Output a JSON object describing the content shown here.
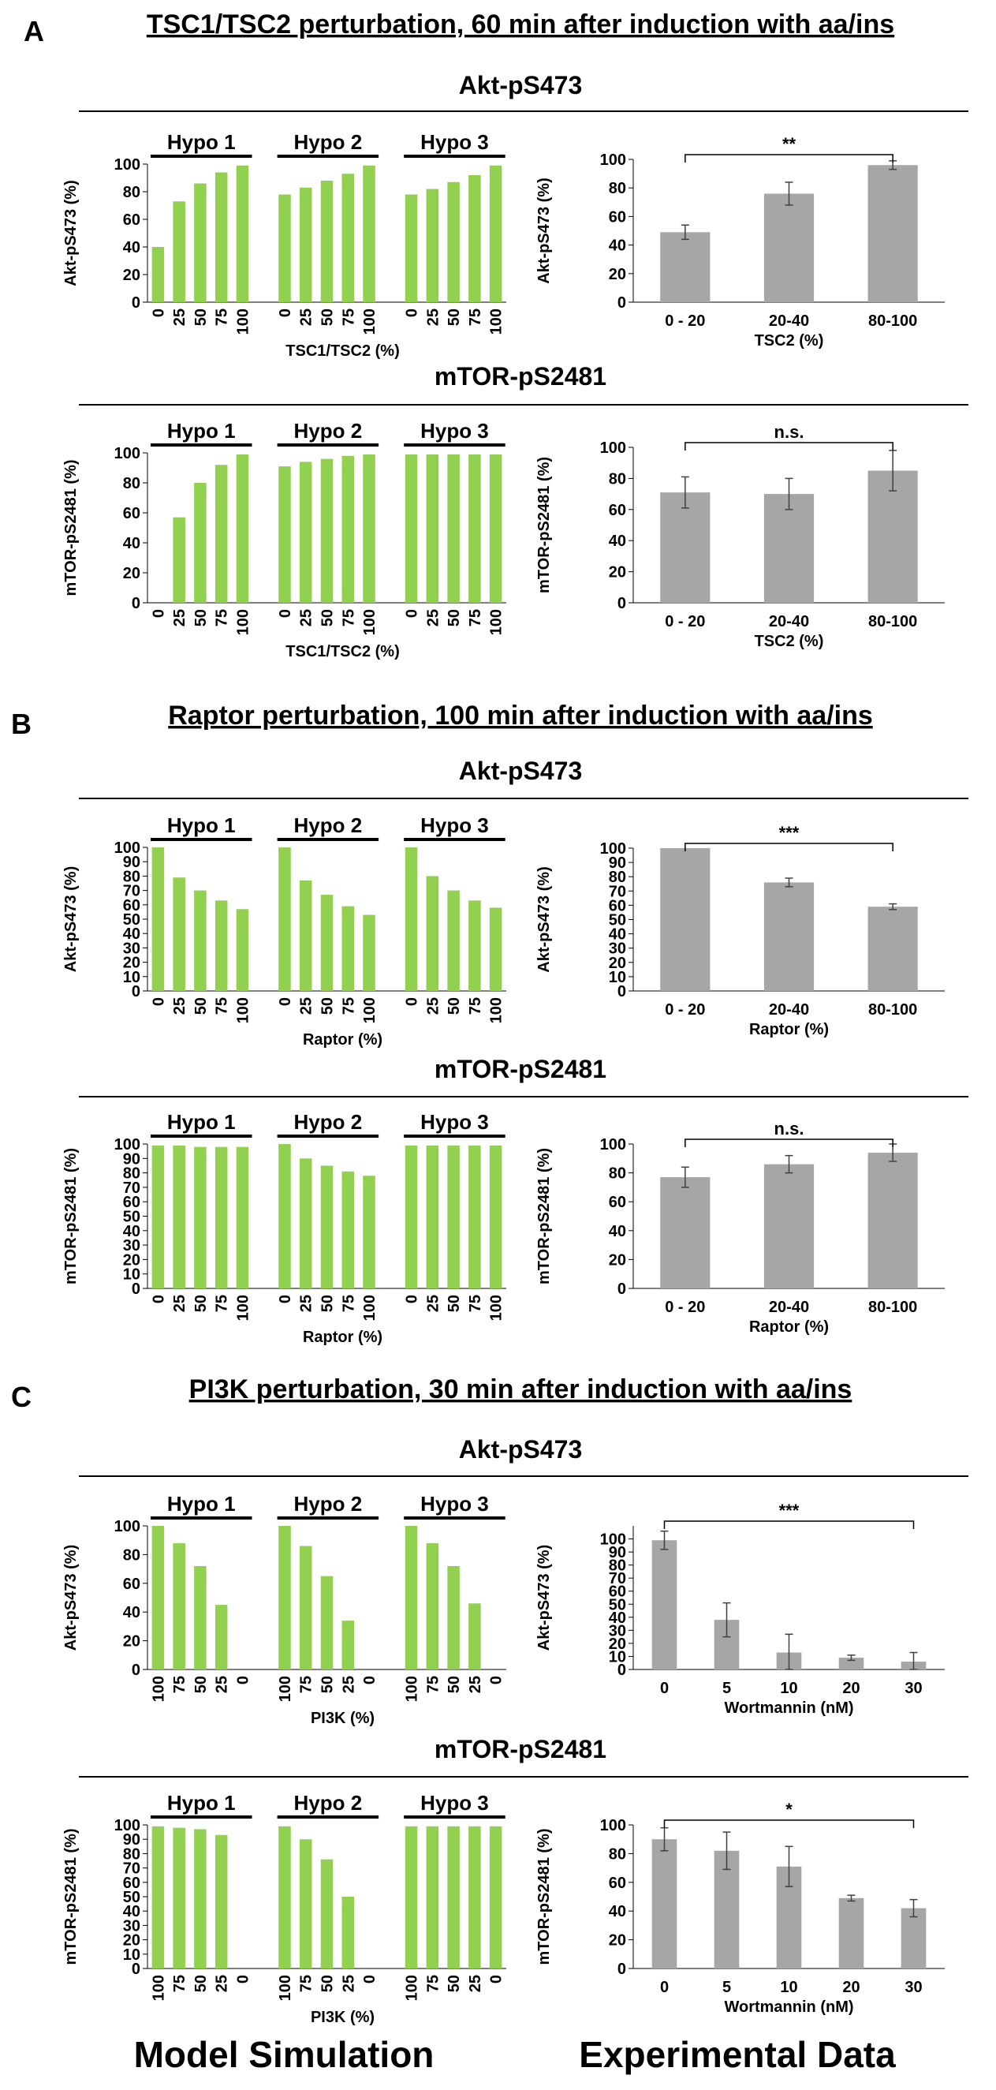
{
  "colors": {
    "simulation": "#92D050",
    "experiment": "#A6A6A6",
    "error_bar": "#404040"
  },
  "footer": {
    "left": "Model Simulation",
    "right": "Experimental Data"
  },
  "panels": [
    {
      "letter": "A",
      "title": "TSC1/TSC2 perturbation, 60 min after induction with aa/ins",
      "sections": [
        {
          "title": "Akt-pS473",
          "sim": {
            "type": "bar",
            "ylabel": "Akt-pS473 (%)",
            "xlabel": "TSC1/TSC2 (%)",
            "ylim": [
              0,
              100
            ],
            "yticks": [
              0,
              20,
              40,
              60,
              80,
              100
            ],
            "categories": [
              "0",
              "25",
              "50",
              "75",
              "100"
            ],
            "groups": [
              {
                "name": "Hypo 1",
                "values": [
                  40,
                  73,
                  86,
                  94,
                  99
                ]
              },
              {
                "name": "Hypo 2",
                "values": [
                  78,
                  83,
                  88,
                  93,
                  99
                ]
              },
              {
                "name": "Hypo 3",
                "values": [
                  78,
                  82,
                  87,
                  92,
                  99
                ]
              }
            ]
          },
          "exp": {
            "type": "bar",
            "ylabel": "Akt-pS473 (%)",
            "xlabel": "TSC2 (%)",
            "ylim": [
              0,
              100
            ],
            "yticks": [
              0,
              20,
              40,
              60,
              80,
              100
            ],
            "categories": [
              "0 - 20",
              "20-40",
              "80-100"
            ],
            "values": [
              49,
              76,
              96
            ],
            "errors": [
              5,
              8,
              3
            ],
            "significance": {
              "label": "**",
              "from": 0,
              "to": 2
            }
          }
        },
        {
          "title": "mTOR-pS2481",
          "sim": {
            "type": "bar",
            "ylabel": "mTOR-pS2481 (%)",
            "xlabel": "TSC1/TSC2 (%)",
            "ylim": [
              0,
              100
            ],
            "yticks": [
              0,
              20,
              40,
              60,
              80,
              100
            ],
            "categories": [
              "0",
              "25",
              "50",
              "75",
              "100"
            ],
            "groups": [
              {
                "name": "Hypo 1",
                "values": [
                  0,
                  57,
                  80,
                  92,
                  99
                ]
              },
              {
                "name": "Hypo 2",
                "values": [
                  91,
                  94,
                  96,
                  98,
                  99
                ]
              },
              {
                "name": "Hypo 3",
                "values": [
                  99,
                  99,
                  99,
                  99,
                  99
                ]
              }
            ]
          },
          "exp": {
            "type": "bar",
            "ylabel": "mTOR-pS2481 (%)",
            "xlabel": "TSC2 (%)",
            "ylim": [
              0,
              100
            ],
            "yticks": [
              0,
              20,
              40,
              60,
              80,
              100
            ],
            "categories": [
              "0 - 20",
              "20-40",
              "80-100"
            ],
            "values": [
              71,
              70,
              85
            ],
            "errors": [
              10,
              10,
              13
            ],
            "significance": {
              "label": "n.s.",
              "from": 0,
              "to": 2
            }
          }
        }
      ]
    },
    {
      "letter": "B",
      "title": "Raptor perturbation, 100 min after induction with aa/ins",
      "sections": [
        {
          "title": "Akt-pS473",
          "sim": {
            "type": "bar",
            "ylabel": "Akt-pS473 (%)",
            "xlabel": "Raptor (%)",
            "ylim": [
              0,
              100
            ],
            "yticks": [
              0,
              10,
              20,
              30,
              40,
              50,
              60,
              70,
              80,
              90,
              100
            ],
            "categories": [
              "0",
              "25",
              "50",
              "75",
              "100"
            ],
            "groups": [
              {
                "name": "Hypo 1",
                "values": [
                  100,
                  79,
                  70,
                  63,
                  57
                ]
              },
              {
                "name": "Hypo 2",
                "values": [
                  100,
                  77,
                  67,
                  59,
                  53
                ]
              },
              {
                "name": "Hypo 3",
                "values": [
                  100,
                  80,
                  70,
                  63,
                  58
                ]
              }
            ]
          },
          "exp": {
            "type": "bar",
            "ylabel": "Akt-pS473 (%)",
            "xlabel": "Raptor (%)",
            "ylim": [
              0,
              100
            ],
            "yticks": [
              0,
              10,
              20,
              30,
              40,
              50,
              60,
              70,
              80,
              90,
              100
            ],
            "categories": [
              "0 - 20",
              "20-40",
              "80-100"
            ],
            "values": [
              100,
              76,
              59
            ],
            "errors": [
              0,
              3,
              2
            ],
            "significance": {
              "label": "***",
              "from": 0,
              "to": 2
            }
          }
        },
        {
          "title": "mTOR-pS2481",
          "sim": {
            "type": "bar",
            "ylabel": "mTOR-pS2481 (%)",
            "xlabel": "Raptor (%)",
            "ylim": [
              0,
              100
            ],
            "yticks": [
              0,
              10,
              20,
              30,
              40,
              50,
              60,
              70,
              80,
              90,
              100
            ],
            "categories": [
              "0",
              "25",
              "50",
              "75",
              "100"
            ],
            "groups": [
              {
                "name": "Hypo 1",
                "values": [
                  99,
                  99,
                  98,
                  98,
                  98
                ]
              },
              {
                "name": "Hypo 2",
                "values": [
                  100,
                  90,
                  85,
                  81,
                  78
                ]
              },
              {
                "name": "Hypo 3",
                "values": [
                  99,
                  99,
                  99,
                  99,
                  99
                ]
              }
            ]
          },
          "exp": {
            "type": "bar",
            "ylabel": "mTOR-pS2481 (%)",
            "xlabel": "Raptor (%)",
            "ylim": [
              0,
              100
            ],
            "yticks": [
              0,
              20,
              40,
              60,
              80,
              100
            ],
            "categories": [
              "0 - 20",
              "20-40",
              "80-100"
            ],
            "values": [
              77,
              86,
              94
            ],
            "errors": [
              7,
              6,
              6
            ],
            "significance": {
              "label": "n.s.",
              "from": 0,
              "to": 2
            }
          }
        }
      ]
    },
    {
      "letter": "C",
      "title": "PI3K perturbation, 30 min after induction with aa/ins",
      "sections": [
        {
          "title": "Akt-pS473",
          "sim": {
            "type": "bar",
            "ylabel": "Akt-pS473 (%)",
            "xlabel": "PI3K (%)",
            "ylim": [
              0,
              100
            ],
            "yticks": [
              0,
              20,
              40,
              60,
              80,
              100
            ],
            "categories": [
              "100",
              "75",
              "50",
              "25",
              "0"
            ],
            "groups": [
              {
                "name": "Hypo 1",
                "values": [
                  100,
                  88,
                  72,
                  45,
                  0
                ]
              },
              {
                "name": "Hypo 2",
                "values": [
                  100,
                  86,
                  65,
                  34,
                  0
                ]
              },
              {
                "name": "Hypo 3",
                "values": [
                  100,
                  88,
                  72,
                  46,
                  0
                ]
              }
            ]
          },
          "exp": {
            "type": "bar",
            "ylabel": "Akt-pS473 (%)",
            "xlabel": "Wortmannin (nM)",
            "ylim": [
              0,
              110
            ],
            "yticks": [
              0,
              10,
              20,
              30,
              40,
              50,
              60,
              70,
              80,
              90,
              100
            ],
            "categories": [
              "0",
              "5",
              "10",
              "20",
              "30"
            ],
            "values": [
              99,
              38,
              13,
              9,
              6
            ],
            "errors": [
              7,
              13,
              14,
              2,
              7
            ],
            "significance": {
              "label": "***",
              "from": 0,
              "to": 4
            }
          }
        },
        {
          "title": "mTOR-pS2481",
          "sim": {
            "type": "bar",
            "ylabel": "mTOR-pS2481 (%)",
            "xlabel": "PI3K (%)",
            "ylim": [
              0,
              100
            ],
            "yticks": [
              0,
              10,
              20,
              30,
              40,
              50,
              60,
              70,
              80,
              90,
              100
            ],
            "categories": [
              "100",
              "75",
              "50",
              "25",
              "0"
            ],
            "groups": [
              {
                "name": "Hypo 1",
                "values": [
                  99,
                  98,
                  97,
                  93,
                  0
                ]
              },
              {
                "name": "Hypo 2",
                "values": [
                  99,
                  90,
                  76,
                  50,
                  0
                ]
              },
              {
                "name": "Hypo 3",
                "values": [
                  99,
                  99,
                  99,
                  99,
                  99
                ]
              }
            ]
          },
          "exp": {
            "type": "bar",
            "ylabel": "mTOR-pS2481 (%)",
            "xlabel": "Wortmannin (nM)",
            "ylim": [
              0,
              100
            ],
            "yticks": [
              0,
              20,
              40,
              60,
              80,
              100
            ],
            "categories": [
              "0",
              "5",
              "10",
              "20",
              "30"
            ],
            "values": [
              90,
              82,
              71,
              49,
              42
            ],
            "errors": [
              8,
              13,
              14,
              2,
              6
            ],
            "significance": {
              "label": "*",
              "from": 0,
              "to": 4
            }
          }
        }
      ]
    }
  ]
}
